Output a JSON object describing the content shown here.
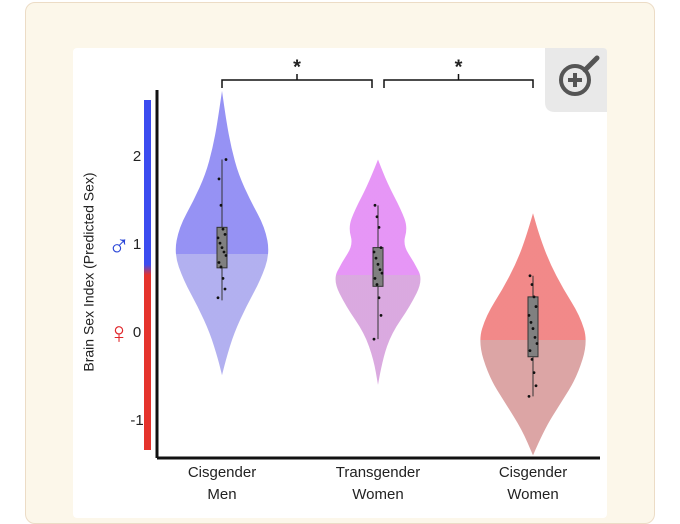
{
  "chart_data": {
    "type": "violin",
    "y_label": "Brain Sex Index (Predicted Sex)",
    "categories": [
      "Cisgender Men",
      "Transgender Women",
      "Cisgender Women"
    ],
    "ylim": [
      -1.42,
      2.76
    ],
    "yticks": [
      -1,
      0,
      1,
      2
    ],
    "side_labels": [
      {
        "text": "♂",
        "value": 1,
        "color": "#2a46d8"
      },
      {
        "text": "♀",
        "value": 0,
        "color": "#e0262a"
      }
    ],
    "significance": [
      {
        "label": "*",
        "groups": [
          "Cisgender Men",
          "Transgender Women"
        ]
      },
      {
        "label": "*",
        "groups": [
          "Transgender Women",
          "Cisgender Women"
        ]
      }
    ],
    "violins": [
      {
        "color_upper": "#8a86f3",
        "color_lower": "#aaa8ee",
        "kde": {
          "y": [
            -0.48,
            -0.3,
            0,
            0.3,
            0.6,
            0.9,
            1.2,
            1.5,
            1.8,
            2.1,
            2.4,
            2.75
          ],
          "density": [
            0,
            0.07,
            0.22,
            0.44,
            0.7,
            0.87,
            0.78,
            0.52,
            0.3,
            0.17,
            0.08,
            0
          ]
        },
        "mean": 0.9,
        "box": {
          "q1": 0.74,
          "q3": 1.2,
          "whisker_low": 0.37,
          "whisker_high": 1.97
        },
        "points": [
          0.4,
          0.5,
          0.62,
          0.75,
          0.8,
          0.88,
          0.92,
          0.97,
          1.02,
          1.08,
          1.12,
          1.18,
          1.45,
          1.75,
          1.97
        ]
      },
      {
        "color_upper": "#e38af5",
        "color_lower": "#d6a0dc",
        "kde": {
          "y": [
            -0.59,
            -0.3,
            0,
            0.3,
            0.6,
            0.8,
            1.0,
            1.2,
            1.4,
            1.7,
            1.97
          ],
          "density": [
            0,
            0.08,
            0.25,
            0.58,
            0.82,
            0.66,
            0.45,
            0.54,
            0.42,
            0.17,
            0
          ]
        },
        "mean": 0.66,
        "box": {
          "q1": 0.53,
          "q3": 0.97,
          "whisker_low": -0.07,
          "whisker_high": 1.45
        },
        "points": [
          -0.07,
          0.2,
          0.4,
          0.55,
          0.62,
          0.68,
          0.72,
          0.78,
          0.85,
          0.92,
          0.97,
          1.2,
          1.32,
          1.45
        ]
      },
      {
        "color_upper": "#f07c7c",
        "color_lower": "#d89b9b",
        "kde": {
          "y": [
            -1.39,
            -1.1,
            -0.8,
            -0.5,
            -0.1,
            0.2,
            0.5,
            0.8,
            1.1,
            1.36
          ],
          "density": [
            0,
            0.2,
            0.5,
            0.8,
            1.0,
            0.85,
            0.55,
            0.3,
            0.12,
            0
          ]
        },
        "mean": -0.08,
        "box": {
          "q1": -0.27,
          "q3": 0.41,
          "whisker_low": -0.72,
          "whisker_high": 0.65
        },
        "points": [
          -0.72,
          -0.6,
          -0.45,
          -0.3,
          -0.2,
          -0.12,
          -0.05,
          0.05,
          0.12,
          0.2,
          0.3,
          0.41,
          0.55,
          0.65
        ]
      }
    ]
  }
}
